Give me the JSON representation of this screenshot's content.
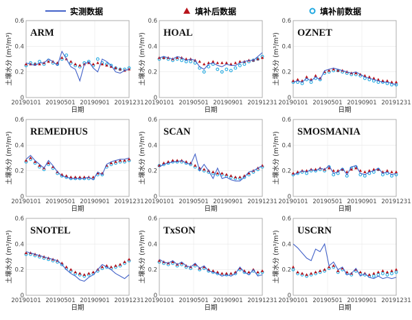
{
  "legend": {
    "observed": "实测数据",
    "after_fill": "填补后数据",
    "before_fill": "填补前数据"
  },
  "colors": {
    "observed": "#4060c8",
    "after_fill": "#b8141c",
    "before_fill": "#20a8e0",
    "axis": "#9a9a9a",
    "grid": "#e6e6e6"
  },
  "chart_data": [
    {
      "type": "line",
      "title": "ARM",
      "xlabel": "日期",
      "ylabel": "土壤水分 (m³/m³)",
      "x_ticks": [
        "20190101",
        "20190501",
        "20190901",
        "20191231"
      ],
      "y_ticks": [
        0,
        0.2,
        0.4,
        0.6
      ],
      "ylim": [
        0,
        0.6
      ],
      "series": [
        {
          "name": "实测数据",
          "values": [
            0.27,
            0.26,
            0.25,
            0.27,
            0.27,
            0.3,
            0.28,
            0.25,
            0.36,
            0.3,
            0.24,
            0.22,
            0.13,
            0.26,
            0.28,
            0.23,
            0.2,
            0.3,
            0.28,
            0.25,
            0.2,
            0.19,
            0.21,
            0.22
          ]
        },
        {
          "name": "填补后数据",
          "values": [
            0.26,
            0.26,
            0.26,
            0.26,
            0.27,
            0.28,
            0.28,
            0.27,
            0.31,
            0.3,
            0.28,
            0.26,
            0.25,
            0.26,
            0.27,
            0.26,
            0.27,
            0.26,
            0.25,
            0.24,
            0.23,
            0.22,
            0.21,
            0.22
          ]
        },
        {
          "name": "填补前数据",
          "values": [
            0.25,
            0.27,
            0.26,
            0.28,
            0.26,
            0.29,
            0.27,
            0.26,
            0.3,
            0.33,
            0.27,
            0.25,
            0.24,
            0.27,
            0.28,
            0.25,
            0.3,
            0.27,
            0.26,
            0.25,
            0.23,
            0.22,
            0.22,
            0.23
          ]
        }
      ]
    },
    {
      "type": "line",
      "title": "HOAL",
      "xlabel": "日期",
      "ylabel": "土壤水分 (m³/m³)",
      "x_ticks": [
        "20190101",
        "20190501",
        "20190901",
        "20191231"
      ],
      "y_ticks": [
        0,
        0.2,
        0.4,
        0.6
      ],
      "ylim": [
        0,
        0.6
      ],
      "series": [
        {
          "name": "实测数据",
          "values": [
            0.31,
            0.32,
            0.31,
            0.3,
            0.32,
            0.31,
            0.29,
            0.3,
            0.29,
            0.24,
            0.22,
            0.26,
            0.27,
            0.25,
            0.24,
            0.26,
            0.25,
            0.25,
            0.27,
            0.28,
            0.29,
            0.29,
            0.32,
            0.35
          ]
        },
        {
          "name": "填补后数据",
          "values": [
            0.31,
            0.31,
            0.31,
            0.3,
            0.31,
            0.31,
            0.3,
            0.3,
            0.29,
            0.28,
            0.26,
            0.27,
            0.28,
            0.27,
            0.27,
            0.27,
            0.26,
            0.27,
            0.28,
            0.28,
            0.29,
            0.29,
            0.3,
            0.31
          ]
        },
        {
          "name": "填补前数据",
          "values": [
            0.3,
            0.31,
            0.3,
            0.29,
            0.3,
            0.29,
            0.28,
            0.28,
            0.27,
            0.23,
            0.2,
            0.24,
            0.26,
            0.22,
            0.2,
            0.22,
            0.21,
            0.23,
            0.25,
            0.26,
            0.28,
            0.29,
            0.3,
            0.32
          ]
        }
      ]
    },
    {
      "type": "line",
      "title": "OZNET",
      "xlabel": "日期",
      "ylabel": "土壤水分 (m³/m³)",
      "x_ticks": [
        "20190101",
        "20190501",
        "20190901",
        "20191231"
      ],
      "y_ticks": [
        0,
        0.2,
        0.4,
        0.6
      ],
      "ylim": [
        0,
        0.6
      ],
      "series": [
        {
          "name": "实测数据",
          "values": [
            0.12,
            0.13,
            0.12,
            0.15,
            0.13,
            0.16,
            0.14,
            0.21,
            0.22,
            0.23,
            0.22,
            0.21,
            0.2,
            0.19,
            0.2,
            0.18,
            0.16,
            0.15,
            0.14,
            0.13,
            0.12,
            0.12,
            0.11,
            0.1
          ]
        },
        {
          "name": "填补后数据",
          "values": [
            0.13,
            0.14,
            0.13,
            0.16,
            0.14,
            0.17,
            0.15,
            0.2,
            0.21,
            0.22,
            0.21,
            0.21,
            0.2,
            0.19,
            0.19,
            0.18,
            0.17,
            0.16,
            0.15,
            0.14,
            0.13,
            0.13,
            0.12,
            0.12
          ]
        },
        {
          "name": "填补前数据",
          "values": [
            0.12,
            0.12,
            0.11,
            0.14,
            0.12,
            0.15,
            0.14,
            0.19,
            0.2,
            0.21,
            0.21,
            0.2,
            0.19,
            0.18,
            0.18,
            0.17,
            0.15,
            0.14,
            0.13,
            0.12,
            0.12,
            0.11,
            0.1,
            0.1
          ]
        }
      ]
    },
    {
      "type": "line",
      "title": "REMEDHUS",
      "xlabel": "日期",
      "ylabel": "土壤水分 (m³/m³)",
      "x_ticks": [
        "20190101",
        "20190501",
        "20190901",
        "20191231"
      ],
      "y_ticks": [
        0,
        0.2,
        0.4,
        0.6
      ],
      "ylim": [
        0,
        0.6
      ],
      "series": [
        {
          "name": "实测数据",
          "values": [
            0.29,
            0.32,
            0.28,
            0.25,
            0.22,
            0.28,
            0.24,
            0.19,
            0.16,
            0.15,
            0.14,
            0.14,
            0.14,
            0.14,
            0.15,
            0.13,
            0.19,
            0.17,
            0.25,
            0.27,
            0.28,
            0.29,
            0.29,
            0.3
          ]
        },
        {
          "name": "填补后数据",
          "values": [
            0.28,
            0.3,
            0.27,
            0.24,
            0.22,
            0.26,
            0.23,
            0.19,
            0.17,
            0.16,
            0.15,
            0.15,
            0.15,
            0.15,
            0.15,
            0.15,
            0.18,
            0.18,
            0.24,
            0.26,
            0.27,
            0.28,
            0.28,
            0.29
          ]
        },
        {
          "name": "填补前数据",
          "values": [
            0.27,
            0.29,
            0.26,
            0.23,
            0.21,
            0.25,
            0.22,
            0.18,
            0.16,
            0.15,
            0.14,
            0.14,
            0.14,
            0.14,
            0.14,
            0.14,
            0.17,
            0.17,
            0.23,
            0.25,
            0.26,
            0.27,
            0.27,
            0.28
          ]
        }
      ]
    },
    {
      "type": "line",
      "title": "SCAN",
      "xlabel": "日期",
      "ylabel": "土壤水分 (m³/m³)",
      "x_ticks": [
        "20190101",
        "20190501",
        "20190901",
        "20191231"
      ],
      "y_ticks": [
        0,
        0.2,
        0.4,
        0.6
      ],
      "ylim": [
        0,
        0.6
      ],
      "series": [
        {
          "name": "实测数据",
          "values": [
            0.23,
            0.25,
            0.26,
            0.27,
            0.27,
            0.28,
            0.26,
            0.25,
            0.33,
            0.2,
            0.25,
            0.2,
            0.14,
            0.22,
            0.14,
            0.15,
            0.13,
            0.12,
            0.12,
            0.15,
            0.19,
            0.2,
            0.22,
            0.24
          ]
        },
        {
          "name": "填补后数据",
          "values": [
            0.24,
            0.26,
            0.27,
            0.28,
            0.28,
            0.28,
            0.27,
            0.26,
            0.24,
            0.22,
            0.21,
            0.2,
            0.19,
            0.18,
            0.18,
            0.17,
            0.16,
            0.15,
            0.15,
            0.16,
            0.18,
            0.2,
            0.22,
            0.24
          ]
        },
        {
          "name": "填补前数据",
          "values": [
            0.24,
            0.25,
            0.26,
            0.27,
            0.27,
            0.27,
            0.26,
            0.25,
            0.23,
            0.21,
            0.2,
            0.19,
            0.18,
            0.17,
            0.17,
            0.16,
            0.15,
            0.14,
            0.14,
            0.15,
            0.17,
            0.19,
            0.21,
            0.23
          ]
        }
      ]
    },
    {
      "type": "line",
      "title": "SMOSMANIA",
      "xlabel": "日期",
      "ylabel": "土壤水分 (m³/m³)",
      "x_ticks": [
        "20190101",
        "20190501",
        "20190901",
        "20191231"
      ],
      "y_ticks": [
        0,
        0.2,
        0.4,
        0.6
      ],
      "ylim": [
        0,
        0.6
      ],
      "series": [
        {
          "name": "实测数据",
          "values": [
            0.17,
            0.18,
            0.2,
            0.19,
            0.21,
            0.2,
            0.22,
            0.21,
            0.24,
            0.18,
            0.19,
            0.22,
            0.17,
            0.23,
            0.24,
            0.18,
            0.17,
            0.19,
            0.2,
            0.22,
            0.18,
            0.19,
            0.17,
            0.18
          ]
        },
        {
          "name": "填补后数据",
          "values": [
            0.18,
            0.19,
            0.2,
            0.2,
            0.21,
            0.21,
            0.22,
            0.21,
            0.22,
            0.2,
            0.2,
            0.21,
            0.19,
            0.21,
            0.22,
            0.2,
            0.19,
            0.2,
            0.21,
            0.21,
            0.19,
            0.2,
            0.19,
            0.19
          ]
        },
        {
          "name": "填补前数据",
          "values": [
            0.17,
            0.18,
            0.19,
            0.18,
            0.2,
            0.2,
            0.21,
            0.2,
            0.23,
            0.17,
            0.18,
            0.21,
            0.16,
            0.22,
            0.23,
            0.17,
            0.16,
            0.18,
            0.19,
            0.21,
            0.17,
            0.18,
            0.16,
            0.17
          ]
        }
      ]
    },
    {
      "type": "line",
      "title": "SNOTEL",
      "xlabel": "日期",
      "ylabel": "土壤水分 (m³/m³)",
      "x_ticks": [
        "20190101",
        "20190501",
        "20190901",
        "20191231"
      ],
      "y_ticks": [
        0,
        0.2,
        0.4,
        0.6
      ],
      "ylim": [
        0,
        0.6
      ],
      "series": [
        {
          "name": "实测数据",
          "values": [
            0.34,
            0.33,
            0.32,
            0.31,
            0.3,
            0.29,
            0.28,
            0.27,
            0.24,
            0.2,
            0.17,
            0.15,
            0.12,
            0.11,
            0.14,
            0.16,
            0.2,
            0.24,
            0.22,
            0.2,
            0.17,
            0.15,
            0.13,
            0.16
          ]
        },
        {
          "name": "填补后数据",
          "values": [
            0.33,
            0.33,
            0.32,
            0.31,
            0.3,
            0.29,
            0.28,
            0.27,
            0.25,
            0.22,
            0.2,
            0.18,
            0.17,
            0.16,
            0.17,
            0.18,
            0.2,
            0.22,
            0.23,
            0.22,
            0.23,
            0.24,
            0.26,
            0.28
          ]
        },
        {
          "name": "填补前数据",
          "values": [
            0.32,
            0.32,
            0.31,
            0.3,
            0.29,
            0.28,
            0.27,
            0.26,
            0.24,
            0.21,
            0.19,
            0.17,
            0.16,
            0.15,
            0.16,
            0.17,
            0.19,
            0.21,
            0.22,
            0.21,
            0.22,
            0.23,
            0.25,
            0.27
          ]
        }
      ]
    },
    {
      "type": "line",
      "title": "TxSON",
      "xlabel": "日期",
      "ylabel": "土壤水分 (m³/m³)",
      "x_ticks": [
        "20190101",
        "20190501",
        "20190901",
        "20191231"
      ],
      "y_ticks": [
        0,
        0.2,
        0.4,
        0.6
      ],
      "ylim": [
        0,
        0.6
      ],
      "series": [
        {
          "name": "实测数据",
          "values": [
            0.28,
            0.26,
            0.25,
            0.27,
            0.24,
            0.26,
            0.23,
            0.22,
            0.25,
            0.21,
            0.23,
            0.19,
            0.18,
            0.17,
            0.15,
            0.16,
            0.15,
            0.17,
            0.22,
            0.18,
            0.16,
            0.2,
            0.15,
            0.16
          ]
        },
        {
          "name": "填补后数据",
          "values": [
            0.27,
            0.26,
            0.25,
            0.26,
            0.24,
            0.25,
            0.23,
            0.22,
            0.24,
            0.21,
            0.22,
            0.2,
            0.19,
            0.18,
            0.17,
            0.17,
            0.17,
            0.18,
            0.21,
            0.19,
            0.18,
            0.2,
            0.18,
            0.19
          ]
        },
        {
          "name": "填补前数据",
          "values": [
            0.26,
            0.25,
            0.24,
            0.25,
            0.23,
            0.24,
            0.22,
            0.21,
            0.23,
            0.2,
            0.21,
            0.19,
            0.18,
            0.17,
            0.16,
            0.16,
            0.16,
            0.17,
            0.2,
            0.18,
            0.17,
            0.19,
            0.17,
            0.18
          ]
        }
      ]
    },
    {
      "type": "line",
      "title": "USCRN",
      "xlabel": "日期",
      "ylabel": "土壤水分 (m³/m³)",
      "x_ticks": [
        "20190101",
        "20190501",
        "20190901",
        "20191231"
      ],
      "y_ticks": [
        0,
        0.2,
        0.4,
        0.6
      ],
      "ylim": [
        0,
        0.6
      ],
      "series": [
        {
          "name": "实测数据",
          "values": [
            0.4,
            0.37,
            0.33,
            0.29,
            0.27,
            0.36,
            0.34,
            0.4,
            0.23,
            0.26,
            0.2,
            0.22,
            0.16,
            0.17,
            0.21,
            0.15,
            0.17,
            0.14,
            0.13,
            0.15,
            0.13,
            0.14,
            0.13,
            0.14
          ]
        },
        {
          "name": "填补后数据",
          "values": [
            0.22,
            0.18,
            0.17,
            0.16,
            0.17,
            0.18,
            0.19,
            0.2,
            0.22,
            0.23,
            0.19,
            0.21,
            0.18,
            0.17,
            0.2,
            0.18,
            0.17,
            0.16,
            0.17,
            0.18,
            0.19,
            0.18,
            0.19,
            0.2
          ]
        },
        {
          "name": "填补前数据",
          "values": [
            0.2,
            0.17,
            0.16,
            0.15,
            0.16,
            0.17,
            0.18,
            0.19,
            0.21,
            0.22,
            0.18,
            0.2,
            0.17,
            0.16,
            0.19,
            0.17,
            0.16,
            0.15,
            0.15,
            0.16,
            0.17,
            0.16,
            0.17,
            0.18
          ]
        }
      ]
    }
  ]
}
